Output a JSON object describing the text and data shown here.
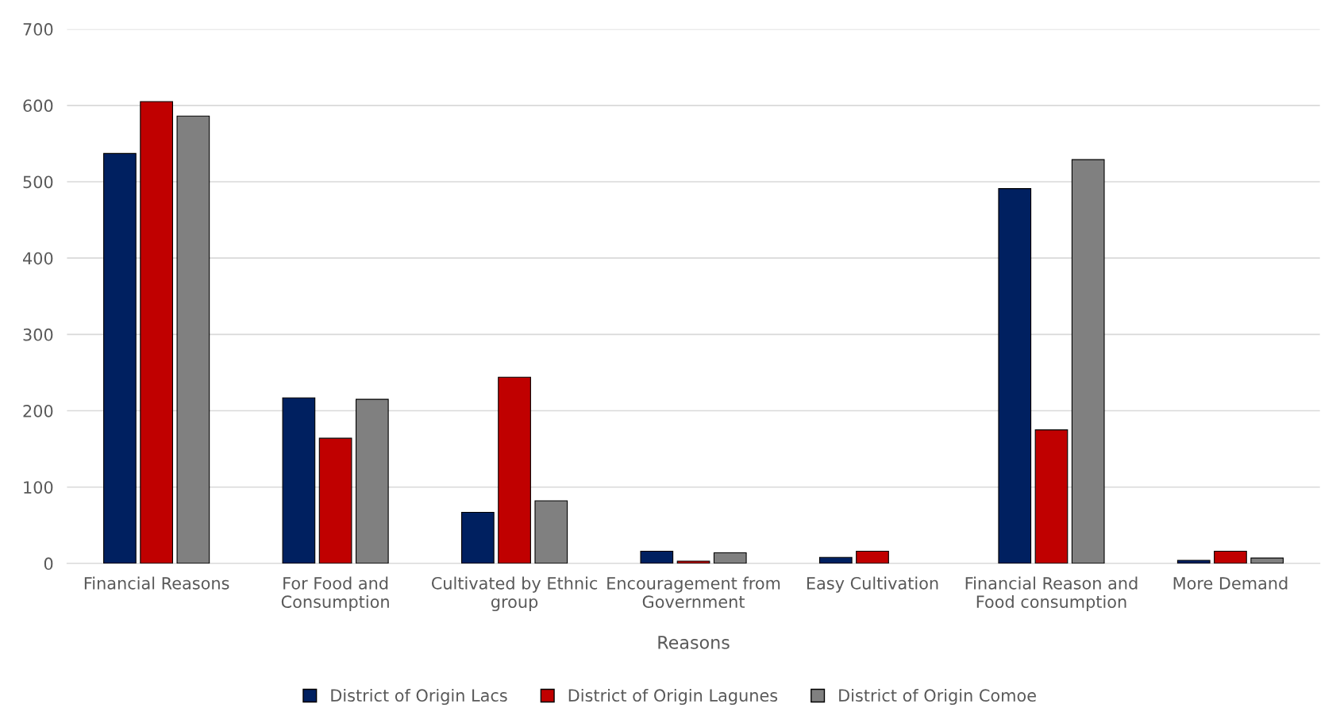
{
  "chart_data": {
    "type": "bar",
    "xlabel": "Reasons",
    "categories": [
      "Financial Reasons",
      "For Food and Consumption",
      "Cultivated by Ethnic group",
      "Encouragement from Government",
      "Easy Cultivation",
      "Financial Reason and Food consumption",
      "More Demand"
    ],
    "series": [
      {
        "name": "District of Origin Lacs",
        "color": "#002060",
        "values": [
          537,
          217,
          67,
          16,
          8,
          491,
          4
        ]
      },
      {
        "name": "District of Origin Lagunes",
        "color": "#c00000",
        "values": [
          605,
          164,
          244,
          3,
          16,
          175,
          16
        ]
      },
      {
        "name": "District of Origin Comoe",
        "color": "#808080",
        "values": [
          586,
          215,
          82,
          14,
          null,
          529,
          7
        ]
      }
    ],
    "ylim": [
      0,
      700
    ],
    "yticks": [
      0,
      100,
      200,
      300,
      400,
      500,
      600,
      700
    ],
    "grid": "y",
    "legend": "bottom"
  }
}
